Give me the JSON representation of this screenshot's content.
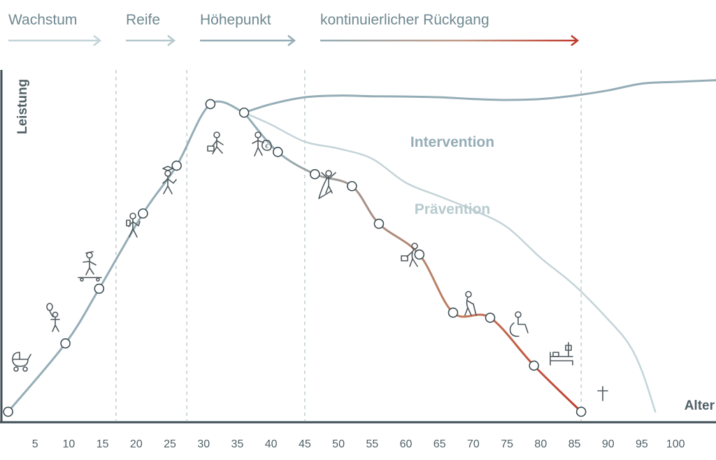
{
  "phases": [
    {
      "label": "Wachstum"
    },
    {
      "label": "Reife"
    },
    {
      "label": "Höhepunkt"
    },
    {
      "label": "kontinuierlicher Rückgang"
    }
  ],
  "colors": {
    "grey_blue": "#95adb6",
    "light_blue": "#c4d4d8",
    "decline_red": "#c0392b",
    "axis": "#3e4e55"
  },
  "chart_data": {
    "type": "line",
    "xlabel": "Alter",
    "ylabel": "Leistung",
    "x_ticks": [
      5,
      10,
      15,
      20,
      25,
      30,
      35,
      40,
      45,
      50,
      55,
      60,
      65,
      70,
      75,
      80,
      85,
      90,
      95,
      100
    ],
    "xlim": [
      0,
      106
    ],
    "ylim": [
      0,
      100
    ],
    "phase_boundaries": [
      17,
      27.5,
      45,
      86
    ],
    "grid": false,
    "series": [
      {
        "name": "",
        "markers": true,
        "x": [
          1,
          9.5,
          14.5,
          21,
          26,
          31,
          36,
          41,
          46.5,
          52,
          56,
          62,
          67,
          72.5,
          79,
          86
        ],
        "y": [
          0,
          20,
          36,
          58,
          72,
          90,
          87.5,
          76,
          69.5,
          66,
          55,
          46,
          29,
          27.5,
          13.5,
          0
        ]
      },
      {
        "name": "Intervention",
        "markers": false,
        "x": [
          36,
          40,
          45,
          50,
          55,
          60,
          65,
          70,
          75,
          80,
          85,
          90,
          95,
          100,
          106
        ],
        "y": [
          87.5,
          90,
          92,
          92.5,
          92.3,
          92.2,
          92,
          91.5,
          91.2,
          91.5,
          92.5,
          94,
          96,
          96.5,
          97
        ]
      },
      {
        "name": "Prävention",
        "markers": false,
        "x": [
          36,
          40,
          45,
          50,
          55,
          60,
          65,
          70,
          75,
          80,
          85,
          90,
          93,
          95,
          97
        ],
        "y": [
          87.5,
          84,
          79,
          77,
          74,
          67,
          63,
          59,
          54,
          45,
          37,
          27,
          20,
          12,
          0
        ]
      }
    ],
    "annotations": [
      {
        "text": "Intervention",
        "series": "Intervention"
      },
      {
        "text": "Prävention",
        "series": "Prävention"
      }
    ]
  },
  "icons": [
    "stroller-icon",
    "child-with-balloon-icon",
    "skateboarder-icon",
    "walking-student-icon",
    "graduate-icon",
    "businessman-with-briefcase-icon",
    "person-with-money-bag-icon",
    "superhero-icon",
    "person-with-basket-icon",
    "elderly-with-cane-icon",
    "wheelchair-icon",
    "hospital-bed-icon",
    "cross-icon"
  ]
}
